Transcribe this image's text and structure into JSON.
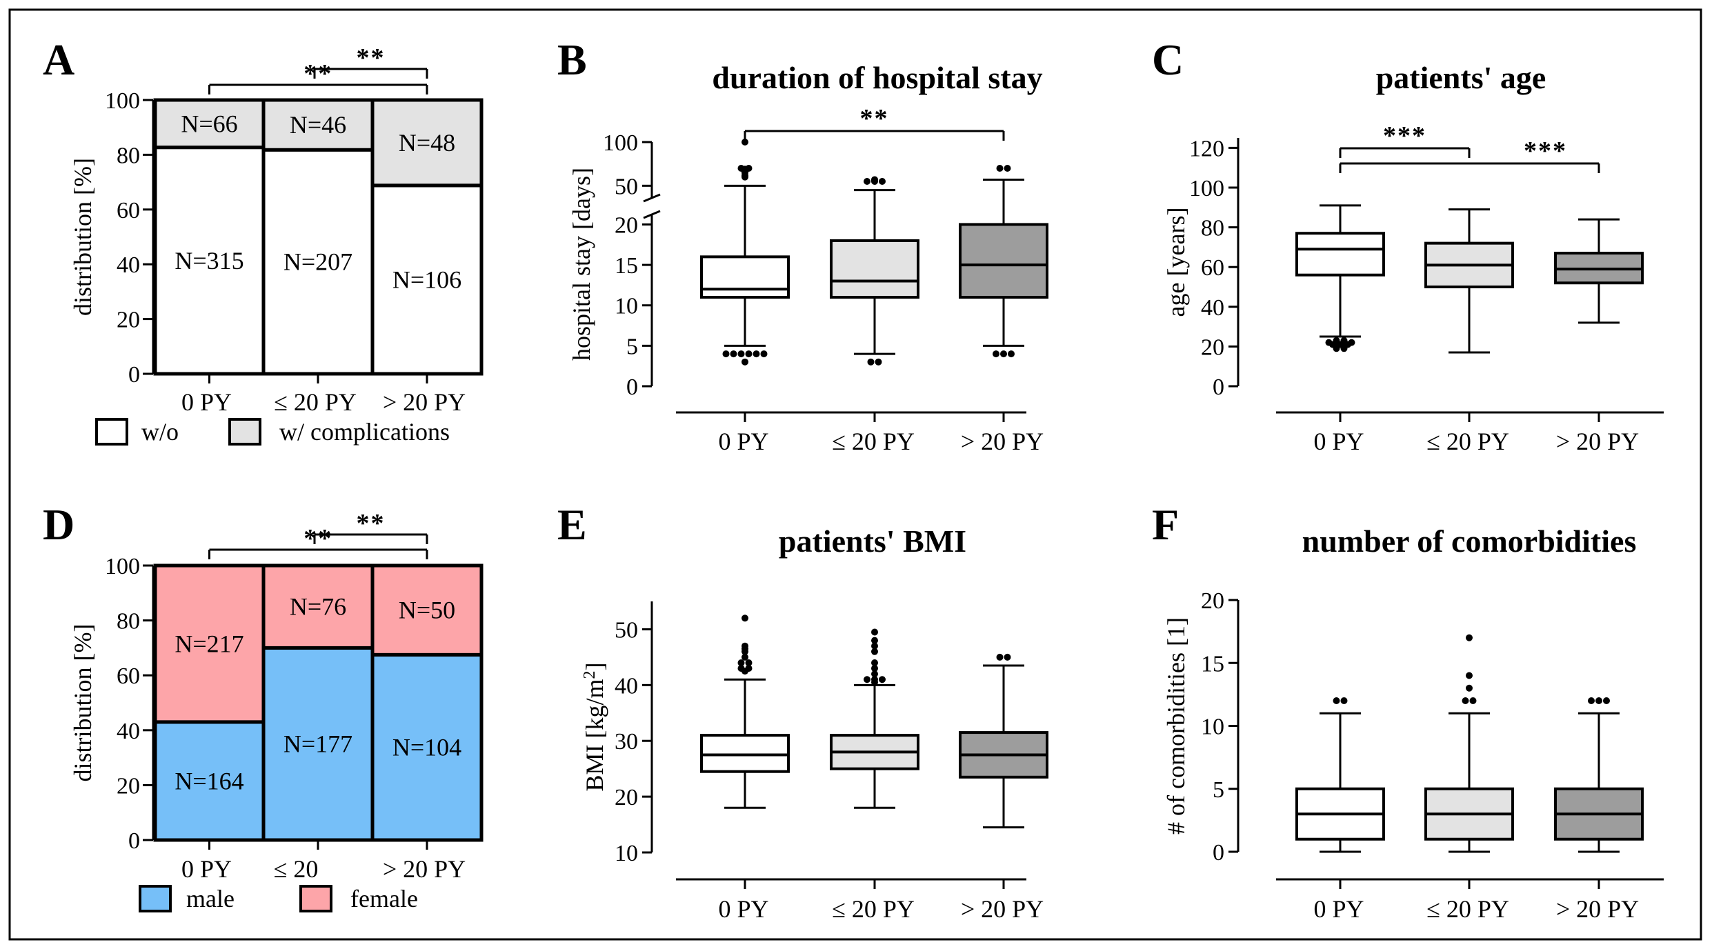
{
  "figure": {
    "colors": {
      "white": "#ffffff",
      "light_gray": "#e3e3e3",
      "mid_gray": "#bfbfbf",
      "dark_gray": "#9d9d9d",
      "male": "#76bff8",
      "female": "#fda5a9",
      "black": "#000000"
    },
    "legend_A": [
      {
        "label": "w/o",
        "color": "#ffffff"
      },
      {
        "label": "w/ complications",
        "color": "#e3e3e3"
      }
    ],
    "legend_D": [
      {
        "label": "male",
        "color": "#76bff8"
      },
      {
        "label": "female",
        "color": "#fda5a9"
      }
    ]
  },
  "chart_data": [
    {
      "id": "A",
      "panel_label": "A",
      "type": "bar",
      "stacked": true,
      "title": "",
      "ylabel": "distribution [%]",
      "xlabel": "",
      "ylim": [
        0,
        100
      ],
      "yticks": [
        0,
        20,
        40,
        60,
        80,
        100
      ],
      "categories": [
        "0 PY",
        "≤ 20 PY",
        "> 20 PY"
      ],
      "series": [
        {
          "name": "w/o",
          "values": [
            82.7,
            81.8,
            68.8
          ],
          "labels": [
            "N=315",
            "N=207",
            "N=106"
          ],
          "color": "#ffffff"
        },
        {
          "name": "w/ complications",
          "values": [
            17.3,
            18.2,
            31.2
          ],
          "labels": [
            "N=66",
            "N=46",
            "N=48"
          ],
          "color": "#e3e3e3"
        }
      ],
      "significance": [
        {
          "from": 0,
          "to": 2,
          "label": "**"
        },
        {
          "from": 1,
          "to": 2,
          "label": "**"
        }
      ]
    },
    {
      "id": "B",
      "panel_label": "B",
      "type": "box",
      "title": "duration of hospital stay",
      "ylabel": "hospital stay [days]",
      "xlabel": "",
      "axis_break": true,
      "ylim_lower": [
        0,
        22
      ],
      "ylim_upper": [
        40,
        100
      ],
      "yticks_lower": [
        0,
        5,
        10,
        15,
        20
      ],
      "yticks_upper": [
        50,
        100
      ],
      "categories": [
        "0 PY",
        "≤ 20 PY",
        "> 20 PY"
      ],
      "boxes": [
        {
          "whisker_low": 5,
          "q1": 11,
          "median": 12,
          "q3": 16,
          "whisker_high": 50,
          "fill": "#ffffff",
          "outliers": [
            4,
            4,
            4,
            4,
            4,
            4,
            3,
            60,
            62,
            65,
            66,
            67,
            68,
            69,
            70,
            70,
            100
          ]
        },
        {
          "whisker_low": 4,
          "q1": 11,
          "median": 13,
          "q3": 18,
          "whisker_high": 45,
          "fill": "#e3e3e3",
          "outliers": [
            3,
            3,
            55,
            55,
            55,
            56,
            57
          ]
        },
        {
          "whisker_low": 5,
          "q1": 11,
          "median": 15,
          "q3": 20,
          "whisker_high": 57,
          "fill": "#9d9d9d",
          "outliers": [
            4,
            4,
            4,
            70,
            70
          ]
        }
      ],
      "significance": [
        {
          "from": 0,
          "to": 2,
          "label": "**"
        }
      ]
    },
    {
      "id": "C",
      "panel_label": "C",
      "type": "box",
      "title": "patients' age",
      "ylabel": "age [years]",
      "xlabel": "",
      "ylim": [
        0,
        125
      ],
      "yticks": [
        0,
        20,
        40,
        60,
        80,
        100,
        120
      ],
      "categories": [
        "0 PY",
        "≤ 20 PY",
        "> 20 PY"
      ],
      "boxes": [
        {
          "whisker_low": 25,
          "q1": 56,
          "median": 69,
          "q3": 77,
          "whisker_high": 91,
          "fill": "#ffffff",
          "outliers": [
            23,
            23,
            22,
            22,
            22,
            22,
            21,
            21,
            21,
            20,
            20,
            19,
            19
          ]
        },
        {
          "whisker_low": 17,
          "q1": 50,
          "median": 61,
          "q3": 72,
          "whisker_high": 89,
          "fill": "#e3e3e3",
          "outliers": []
        },
        {
          "whisker_low": 32,
          "q1": 52,
          "median": 59,
          "q3": 67,
          "whisker_high": 84,
          "fill": "#9d9d9d",
          "outliers": []
        }
      ],
      "significance": [
        {
          "from": 0,
          "to": 1,
          "label": "***"
        },
        {
          "from": 0,
          "to": 2,
          "label": "***"
        }
      ]
    },
    {
      "id": "D",
      "panel_label": "D",
      "type": "bar",
      "stacked": true,
      "title": "",
      "ylabel": "distribution [%]",
      "xlabel": "",
      "ylim": [
        0,
        100
      ],
      "yticks": [
        0,
        20,
        40,
        60,
        80,
        100
      ],
      "categories": [
        "0 PY",
        "≤ 20",
        "> 20 PY"
      ],
      "series": [
        {
          "name": "male",
          "values": [
            43.0,
            70.0,
            67.5
          ],
          "labels": [
            "N=164",
            "N=177",
            "N=104"
          ],
          "color": "#76bff8"
        },
        {
          "name": "female",
          "values": [
            57.0,
            30.0,
            32.5
          ],
          "labels": [
            "N=217",
            "N=76",
            "N=50"
          ],
          "color": "#fda5a9"
        }
      ],
      "significance": [
        {
          "from": 0,
          "to": 2,
          "label": "**"
        },
        {
          "from": 1,
          "to": 2,
          "label": "**"
        }
      ]
    },
    {
      "id": "E",
      "panel_label": "E",
      "type": "box",
      "title": "patients' BMI",
      "ylabel": "BMI [kg/m",
      "ylabel_sup": "2",
      "ylabel_end": "]",
      "xlabel": "",
      "ylim": [
        10,
        55
      ],
      "yticks": [
        10,
        20,
        30,
        40,
        50
      ],
      "categories": [
        "0 PY",
        "≤ 20 PY",
        "> 20 PY"
      ],
      "boxes": [
        {
          "whisker_low": 18,
          "q1": 24.5,
          "median": 27.5,
          "q3": 31,
          "whisker_high": 41,
          "fill": "#ffffff",
          "outliers": [
            42.5,
            43,
            43,
            44,
            44,
            45,
            46,
            46.5,
            47,
            52
          ]
        },
        {
          "whisker_low": 18,
          "q1": 25,
          "median": 28,
          "q3": 31,
          "whisker_high": 40,
          "fill": "#e3e3e3",
          "outliers": [
            40.5,
            41,
            41,
            41,
            42,
            43,
            44,
            46,
            47,
            48,
            49.5
          ]
        },
        {
          "whisker_low": 14.5,
          "q1": 23.5,
          "median": 27.5,
          "q3": 31.5,
          "whisker_high": 43.5,
          "fill": "#9d9d9d",
          "outliers": [
            45,
            45
          ]
        }
      ],
      "significance": []
    },
    {
      "id": "F",
      "panel_label": "F",
      "type": "box",
      "title": "number of comorbidities",
      "ylabel": "# of comorbidities [1]",
      "xlabel": "",
      "ylim": [
        0,
        20
      ],
      "yticks": [
        0,
        5,
        10,
        15,
        20
      ],
      "categories": [
        "0 PY",
        "≤ 20 PY",
        "> 20 PY"
      ],
      "boxes": [
        {
          "whisker_low": 0,
          "q1": 1,
          "median": 3,
          "q3": 5,
          "whisker_high": 11,
          "fill": "#ffffff",
          "outliers": [
            12,
            12
          ]
        },
        {
          "whisker_low": 0,
          "q1": 1,
          "median": 3,
          "q3": 5,
          "whisker_high": 11,
          "fill": "#e3e3e3",
          "outliers": [
            12,
            12,
            13,
            14,
            17
          ]
        },
        {
          "whisker_low": 0,
          "q1": 1,
          "median": 3,
          "q3": 5,
          "whisker_high": 11,
          "fill": "#9d9d9d",
          "outliers": [
            12,
            12,
            12
          ]
        }
      ],
      "significance": []
    }
  ]
}
